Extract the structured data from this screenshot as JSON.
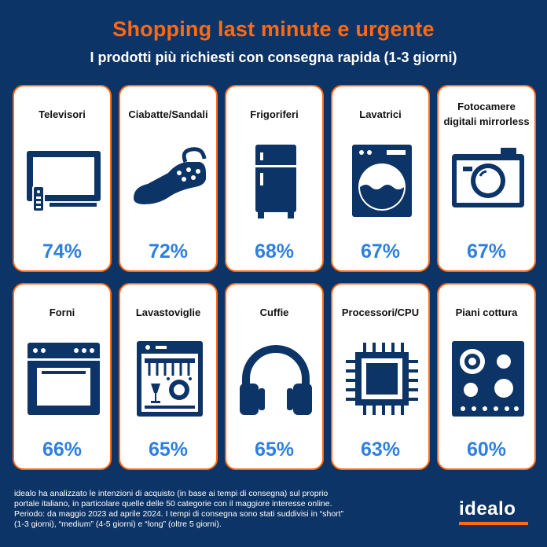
{
  "header": {
    "title": "Shopping last minute e urgente",
    "subtitle": "I prodotti più richiesti con consegna rapida (1-3 giorni)"
  },
  "chart_data": {
    "type": "table",
    "categories": [
      "Televisori",
      "Ciabatte/Sandali",
      "Frigoriferi",
      "Lavatrici",
      "Fotocamere digitali mirrorless",
      "Forni",
      "Lavastoviglie",
      "Cuffie",
      "Processori/CPU",
      "Piani cottura"
    ],
    "values": [
      74,
      72,
      68,
      67,
      67,
      66,
      65,
      65,
      63,
      60
    ],
    "value_labels": [
      "74%",
      "72%",
      "68%",
      "67%",
      "67%",
      "66%",
      "65%",
      "65%",
      "63%",
      "60%"
    ],
    "icons": [
      "tv-icon",
      "slipper-icon",
      "fridge-icon",
      "washing-machine-icon",
      "camera-icon",
      "oven-icon",
      "dishwasher-icon",
      "headphones-icon",
      "cpu-icon",
      "cooktop-icon"
    ]
  },
  "footnote": "idealo ha analizzato le intenzioni di acquisto (in base ai tempi di consegna) sul proprio portale italiano, in particolare quelle delle 50 categorie con il maggiore interesse online. Periodo: da maggio 2023 ad aprile 2024. I tempi di consegna sono stati suddivisi in “short” (1-3 giorni), “medium” (4-5 giorni) e “long” (oltre 5 giorni).",
  "brand": {
    "logo_text": "idealo",
    "accent": "#ff6a13",
    "background": "#0d3466",
    "value_color": "#2f7fe0"
  }
}
